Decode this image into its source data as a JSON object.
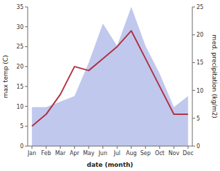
{
  "chart_data": {
    "type": "line",
    "xlabel": "date (month)",
    "ylabel": "max temp (C)",
    "y2label": "med. precipitation (kg/m2)",
    "categories": [
      "Jan",
      "Feb",
      "Mar",
      "Apr",
      "May",
      "Jun",
      "Jul",
      "Aug",
      "Sep",
      "Oct",
      "Nov",
      "Dec"
    ],
    "series": [
      {
        "type": "area",
        "axis": "y2",
        "color": "#c0c8ee",
        "values": [
          7,
          7,
          8,
          9,
          15,
          22,
          18,
          25,
          18,
          13,
          7,
          9
        ]
      },
      {
        "type": "line",
        "color": "#b03040",
        "values": [
          5,
          8,
          13,
          20,
          19,
          22,
          25,
          29,
          22,
          15,
          8,
          8
        ]
      }
    ],
    "ylim": [
      0,
      35
    ],
    "yticks": [
      0,
      5,
      10,
      15,
      20,
      25,
      30,
      35
    ],
    "y2lim": [
      0,
      25
    ],
    "y2ticks": [
      0,
      5,
      10,
      15,
      20,
      25
    ]
  }
}
